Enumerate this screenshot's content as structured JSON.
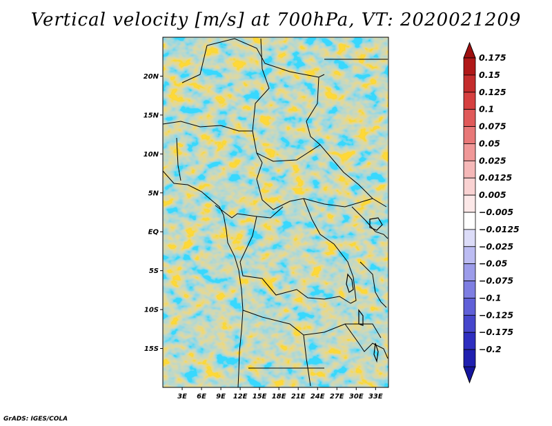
{
  "title": "Vertical velocity [m/s] at 700hPa, VT: 2020021209",
  "footer": "GrADS: IGES/COLA",
  "map": {
    "lon_range": [
      0,
      35
    ],
    "lat_range": [
      -20,
      25
    ],
    "lat_ticks": [
      {
        "lat": 20,
        "label": "20N"
      },
      {
        "lat": 15,
        "label": "15N"
      },
      {
        "lat": 10,
        "label": "10N"
      },
      {
        "lat": 5,
        "label": "5N"
      },
      {
        "lat": 0,
        "label": "EQ"
      },
      {
        "lat": -5,
        "label": "5S"
      },
      {
        "lat": -10,
        "label": "10S"
      },
      {
        "lat": -15,
        "label": "15S"
      }
    ],
    "lon_ticks": [
      {
        "lon": 3,
        "label": "3E"
      },
      {
        "lon": 6,
        "label": "6E"
      },
      {
        "lon": 9,
        "label": "9E"
      },
      {
        "lon": 12,
        "label": "12E"
      },
      {
        "lon": 15,
        "label": "15E"
      },
      {
        "lon": 18,
        "label": "18E"
      },
      {
        "lon": 21,
        "label": "21E"
      },
      {
        "lon": 24,
        "label": "24E"
      },
      {
        "lon": 27,
        "label": "27E"
      },
      {
        "lon": 30,
        "label": "30E"
      },
      {
        "lon": 33,
        "label": "33E"
      }
    ]
  },
  "colorbar": {
    "levels": [
      {
        "label": "0.175",
        "color": "#b01818"
      },
      {
        "label": "0.15",
        "color": "#c42c2c"
      },
      {
        "label": "0.125",
        "color": "#d64040"
      },
      {
        "label": "0.1",
        "color": "#e05a5a"
      },
      {
        "label": "0.075",
        "color": "#e87878"
      },
      {
        "label": "0.05",
        "color": "#f09898"
      },
      {
        "label": "0.025",
        "color": "#f5b8b8"
      },
      {
        "label": "0.0125",
        "color": "#f9d2d2"
      },
      {
        "label": "0.005",
        "color": "#fce8e8"
      },
      {
        "label": "−0.005",
        "color": "#ffffff"
      },
      {
        "label": "−0.0125",
        "color": "#dcdcf8"
      },
      {
        "label": "−0.025",
        "color": "#bcbcf2"
      },
      {
        "label": "−0.05",
        "color": "#9c9cea"
      },
      {
        "label": "−0.075",
        "color": "#7e7ee2"
      },
      {
        "label": "−0.1",
        "color": "#6060d8"
      },
      {
        "label": "−0.125",
        "color": "#4646cc"
      },
      {
        "label": "−0.175",
        "color": "#2e2ec0"
      },
      {
        "label": "−0.2",
        "color": "#2020b0"
      }
    ],
    "top_color": "#9e1010",
    "bottom_color": "#15159e"
  }
}
